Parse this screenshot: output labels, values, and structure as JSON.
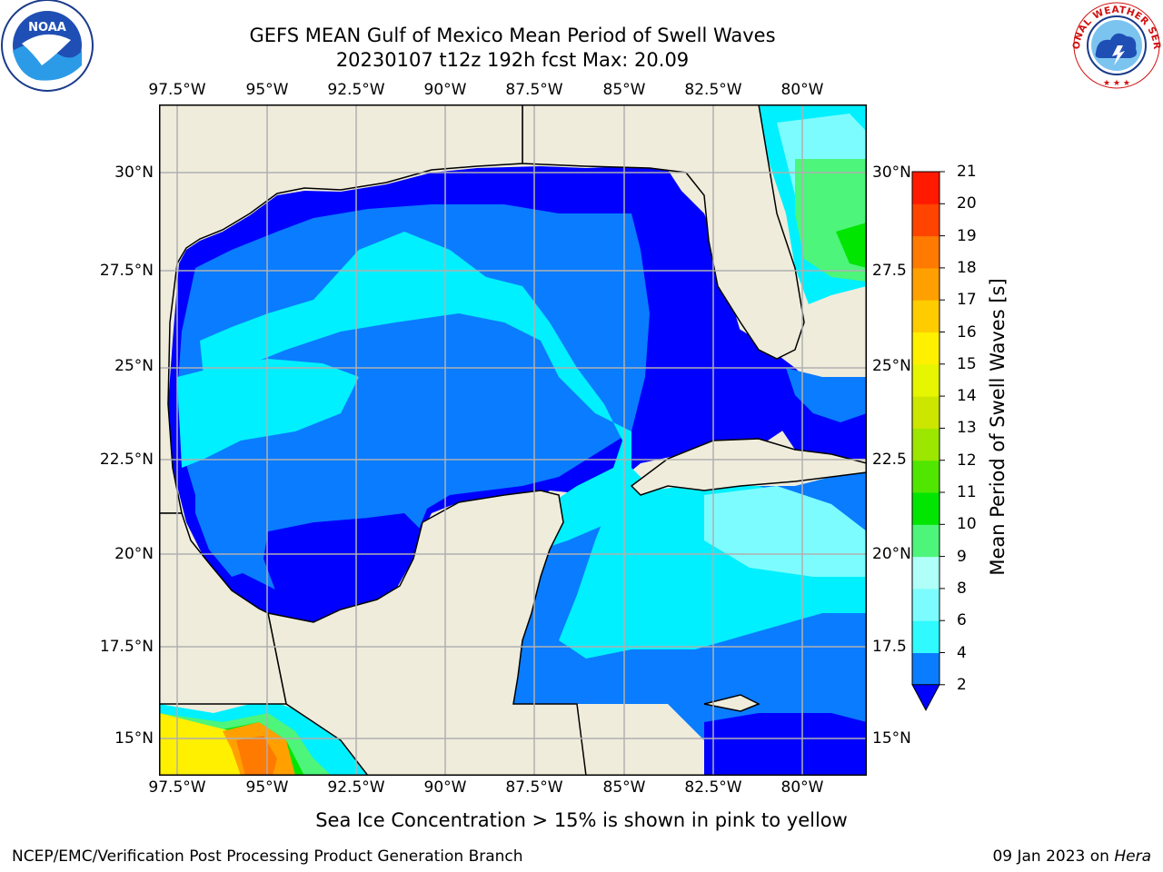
{
  "header": {
    "title_line1": "GEFS MEAN Gulf of Mexico Mean Period of Swell Waves",
    "title_line2": "20230107 t12z 192h fcst   Max: 20.09"
  },
  "map": {
    "lon_ticks": [
      "97.5°W",
      "95°W",
      "92.5°W",
      "90°W",
      "87.5°W",
      "85°W",
      "82.5°W",
      "80°W"
    ],
    "lat_ticks": [
      "30°N",
      "27.5°N",
      "25°N",
      "22.5°N",
      "20°N",
      "17.5°N",
      "15°N"
    ],
    "right_lat_ticks": [
      "30°N",
      "27.5",
      "25°N",
      "22.5",
      "20°N",
      "17.5",
      "15°N"
    ],
    "land_color": "#efecdc",
    "grid_color": "#b0b0b0"
  },
  "colorbar": {
    "label": "Mean Period of Swell Waves [s]",
    "ticks": [
      "2",
      "4",
      "6",
      "8",
      "9",
      "10",
      "11",
      "12",
      "13",
      "14",
      "15",
      "16",
      "17",
      "18",
      "19",
      "20",
      "21"
    ],
    "colors": [
      "#0a7cff",
      "#00e5ff",
      "#2efaff",
      "#7dfcff",
      "#b0fff8",
      "#4df57a",
      "#00e600",
      "#50e600",
      "#9de600",
      "#cce600",
      "#e6f500",
      "#fff000",
      "#ffcc00",
      "#ffa000",
      "#ff7a00",
      "#ff4400",
      "#ff1a00"
    ],
    "under_color": "#0000ff"
  },
  "footer": {
    "caption": "Sea Ice Concentration > 15% is shown in pink to yellow",
    "credit_left": "NCEP/EMC/Verification Post Processing Product Generation Branch",
    "date": "09 Jan 2023 on",
    "host": "Hera"
  },
  "logos": {
    "noaa_text": "NOAA",
    "nws_text": "NATIONAL WEATHER SERVICE"
  }
}
